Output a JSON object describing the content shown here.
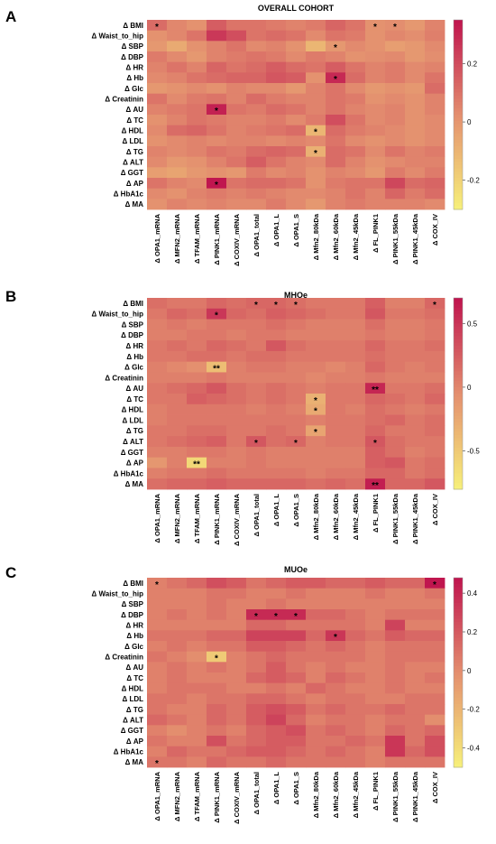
{
  "colorscale": {
    "low": "#f7f27a",
    "mid": "#e4906f",
    "high": "#c0164f"
  },
  "panels": [
    {
      "letter": "A",
      "title": "OVERALL COHORT",
      "colorbar_ticks": [
        0.2,
        0,
        -0.2
      ],
      "vmin": -0.3,
      "vmax": 0.35,
      "rows": [
        "Δ BMI",
        "Δ Waist_to_hip",
        "Δ SBP",
        "Δ DBP",
        "Δ HR",
        "Δ Hb",
        "Δ Glc",
        "Δ Creatinin",
        "Δ AU",
        "Δ TC",
        "Δ HDL",
        "Δ LDL",
        "Δ TG",
        "Δ ALT",
        "Δ GGT",
        "Δ AP",
        "Δ HbA1c",
        "Δ MA"
      ],
      "cols": [
        "Δ OPA1_mRNA",
        "Δ MFN2_mRNA",
        "Δ TFAM_mRNA",
        "Δ PINK1_mRNA",
        "Δ COXIV_mRNA",
        "Δ OPA1_total",
        "Δ OPA1_L",
        "Δ OPA1_S",
        "Δ Mfn2_80kDa",
        "Δ Mfn2_60kDa",
        "Δ Mfn2_45kDa",
        "Δ FL_PINK1",
        "Δ PINK1_55kDa",
        "Δ PINK1_45kDa",
        "Δ COX_IV"
      ],
      "values": [
        [
          0.12,
          0.05,
          0.02,
          0.16,
          0.1,
          0.1,
          0.08,
          0.06,
          0.08,
          0.14,
          0.1,
          0.02,
          0.03,
          0.0,
          0.06
        ],
        [
          0.02,
          0.05,
          0.1,
          0.26,
          0.2,
          0.1,
          0.12,
          0.1,
          0.04,
          0.1,
          0.08,
          0.02,
          0.05,
          0.03,
          0.07
        ],
        [
          0.0,
          -0.06,
          0.02,
          0.06,
          0.1,
          0.04,
          0.06,
          0.02,
          -0.1,
          0.0,
          0.04,
          0.02,
          -0.02,
          0.0,
          0.04
        ],
        [
          0.08,
          0.04,
          0.0,
          0.06,
          0.08,
          0.1,
          0.08,
          0.04,
          0.08,
          0.06,
          0.02,
          0.03,
          0.04,
          0.0,
          0.03
        ],
        [
          0.06,
          0.1,
          0.06,
          0.14,
          0.1,
          0.12,
          0.16,
          0.12,
          0.1,
          0.16,
          0.1,
          0.06,
          0.08,
          0.04,
          0.06
        ],
        [
          0.04,
          0.06,
          0.1,
          0.12,
          0.14,
          0.14,
          0.18,
          0.16,
          0.02,
          0.3,
          0.12,
          0.06,
          0.08,
          0.04,
          0.1
        ],
        [
          0.0,
          0.02,
          0.04,
          0.02,
          0.06,
          0.04,
          0.04,
          0.0,
          0.06,
          0.1,
          0.04,
          0.0,
          0.02,
          0.0,
          0.12
        ],
        [
          0.1,
          0.04,
          0.08,
          0.1,
          0.06,
          0.12,
          0.08,
          0.06,
          0.06,
          0.1,
          0.08,
          0.02,
          0.04,
          0.02,
          0.06
        ],
        [
          0.06,
          0.08,
          0.1,
          0.32,
          0.1,
          0.08,
          0.12,
          0.1,
          0.06,
          0.1,
          0.06,
          0.04,
          0.06,
          0.02,
          0.06
        ],
        [
          0.02,
          0.06,
          0.1,
          0.08,
          0.06,
          0.06,
          0.08,
          0.04,
          0.08,
          0.2,
          0.1,
          0.04,
          0.06,
          0.02,
          0.04
        ],
        [
          0.04,
          0.12,
          0.14,
          0.1,
          0.06,
          0.08,
          0.1,
          0.12,
          -0.1,
          0.12,
          0.08,
          0.06,
          0.04,
          0.02,
          0.04
        ],
        [
          0.02,
          0.04,
          0.06,
          0.04,
          0.06,
          0.06,
          0.04,
          0.06,
          0.04,
          0.1,
          0.04,
          0.02,
          0.04,
          0.02,
          0.04
        ],
        [
          0.06,
          0.04,
          0.06,
          0.1,
          0.08,
          0.12,
          0.14,
          0.12,
          -0.08,
          0.12,
          0.1,
          0.04,
          0.1,
          0.06,
          0.08
        ],
        [
          0.04,
          0.0,
          0.02,
          0.06,
          0.1,
          0.16,
          0.1,
          0.06,
          0.04,
          0.12,
          0.06,
          0.02,
          0.04,
          0.06,
          0.06
        ],
        [
          -0.02,
          -0.04,
          0.0,
          0.02,
          0.0,
          0.08,
          0.04,
          0.06,
          0.02,
          0.06,
          0.04,
          0.0,
          0.08,
          0.04,
          0.08
        ],
        [
          0.1,
          0.06,
          0.04,
          0.36,
          0.1,
          0.12,
          0.12,
          0.1,
          0.02,
          0.08,
          0.1,
          0.1,
          0.22,
          0.12,
          0.14
        ],
        [
          0.04,
          0.02,
          0.06,
          0.08,
          0.06,
          0.08,
          0.06,
          0.04,
          0.04,
          0.06,
          0.1,
          0.06,
          0.14,
          0.08,
          0.12
        ],
        [
          0.02,
          0.06,
          0.04,
          0.06,
          0.04,
          0.04,
          0.08,
          0.04,
          0.0,
          0.06,
          0.08,
          0.06,
          0.06,
          0.06,
          0.04
        ]
      ],
      "stars": [
        {
          "row": 0,
          "col": 0,
          "label": "*"
        },
        {
          "row": 0,
          "col": 11,
          "label": "*"
        },
        {
          "row": 0,
          "col": 12,
          "label": "*"
        },
        {
          "row": 2,
          "col": 9,
          "label": "*"
        },
        {
          "row": 5,
          "col": 9,
          "label": "*"
        },
        {
          "row": 8,
          "col": 3,
          "label": "*"
        },
        {
          "row": 10,
          "col": 8,
          "label": "*"
        },
        {
          "row": 12,
          "col": 8,
          "label": "*"
        },
        {
          "row": 15,
          "col": 3,
          "label": "*"
        }
      ]
    },
    {
      "letter": "B",
      "title": "MHOe",
      "colorbar_ticks": [
        0.5,
        0,
        -0.5
      ],
      "vmin": -0.8,
      "vmax": 0.7,
      "rows": [
        "Δ BMI",
        "Δ Waist_to_hip",
        "Δ SBP",
        "Δ DBP",
        "Δ HR",
        "Δ Hb",
        "Δ Glc",
        "Δ Creatinin",
        "Δ AU",
        "Δ TC",
        "Δ HDL",
        "Δ LDL",
        "Δ TG",
        "Δ ALT",
        "Δ GGT",
        "Δ AP",
        "Δ HbA1c",
        "Δ MA"
      ],
      "cols": [
        "Δ OPA1_mRNA",
        "Δ MFN2_mRNA",
        "Δ TFAM_mRNA",
        "Δ PINK1_mRNA",
        "Δ COXIV_mRNA",
        "Δ OPA1_total",
        "Δ OPA1_L",
        "Δ OPA1_S",
        "Δ Mfn2_80kDa",
        "Δ Mfn2_60kDa",
        "Δ Mfn2_45kDa",
        "Δ FL_PINK1",
        "Δ PINK1_55kDa",
        "Δ PINK1_45kDa",
        "Δ COX_IV"
      ],
      "values": [
        [
          0.15,
          0.1,
          0.1,
          0.2,
          0.15,
          0.2,
          0.2,
          0.15,
          0.1,
          0.1,
          0.1,
          0.25,
          0.05,
          0.05,
          0.2
        ],
        [
          0.1,
          0.2,
          0.15,
          0.5,
          0.2,
          0.15,
          0.25,
          0.2,
          0.15,
          0.1,
          0.1,
          0.3,
          0.1,
          0.1,
          0.15
        ],
        [
          0.05,
          0.1,
          0.05,
          0.1,
          0.1,
          0.1,
          0.15,
          0.1,
          0.05,
          0.05,
          0.05,
          0.15,
          0.05,
          0.05,
          0.1
        ],
        [
          0.05,
          0.05,
          0.1,
          0.1,
          0.05,
          0.1,
          0.1,
          0.05,
          0.05,
          0.05,
          0.05,
          0.1,
          0.05,
          0.05,
          0.1
        ],
        [
          0.1,
          0.15,
          0.1,
          0.2,
          0.15,
          0.1,
          0.3,
          0.15,
          0.1,
          0.1,
          0.1,
          0.2,
          0.1,
          0.1,
          0.15
        ],
        [
          0.1,
          0.1,
          0.15,
          0.15,
          0.1,
          0.15,
          0.15,
          0.1,
          0.1,
          0.1,
          0.1,
          0.15,
          0.1,
          0.1,
          0.1
        ],
        [
          0.05,
          0.0,
          -0.05,
          -0.4,
          0.05,
          0.1,
          0.1,
          0.05,
          0.05,
          0.0,
          0.05,
          0.2,
          0.1,
          0.05,
          0.1
        ],
        [
          0.05,
          0.05,
          0.05,
          0.1,
          0.05,
          0.05,
          0.05,
          0.05,
          0.0,
          0.05,
          0.05,
          0.1,
          0.05,
          0.05,
          0.05
        ],
        [
          0.1,
          0.15,
          0.2,
          0.3,
          0.15,
          0.1,
          0.15,
          0.1,
          0.05,
          0.1,
          0.1,
          0.6,
          0.1,
          0.1,
          0.15
        ],
        [
          0.1,
          0.1,
          0.25,
          0.2,
          0.15,
          0.1,
          0.15,
          0.1,
          -0.3,
          0.1,
          0.1,
          0.2,
          0.15,
          0.1,
          0.2
        ],
        [
          0.05,
          0.1,
          0.1,
          0.1,
          0.1,
          0.05,
          0.1,
          0.05,
          -0.25,
          0.1,
          0.05,
          0.15,
          0.1,
          0.05,
          0.1
        ],
        [
          0.05,
          0.1,
          0.1,
          0.1,
          0.1,
          0.1,
          0.1,
          0.1,
          0.05,
          0.1,
          0.1,
          0.15,
          0.2,
          0.1,
          0.15
        ],
        [
          0.1,
          0.1,
          0.15,
          0.15,
          0.1,
          0.1,
          0.15,
          0.1,
          -0.2,
          0.1,
          0.1,
          0.2,
          0.1,
          0.1,
          0.15
        ],
        [
          0.1,
          0.15,
          0.2,
          0.25,
          0.1,
          0.3,
          0.15,
          0.2,
          0.05,
          0.1,
          0.1,
          0.3,
          0.15,
          0.1,
          0.1
        ],
        [
          0.05,
          0.05,
          0.1,
          0.1,
          0.05,
          0.1,
          0.05,
          0.05,
          0.05,
          0.05,
          0.05,
          0.25,
          0.15,
          0.05,
          0.1
        ],
        [
          -0.1,
          0.05,
          -0.6,
          0.05,
          0.05,
          0.1,
          0.05,
          0.05,
          0.05,
          0.05,
          0.05,
          0.25,
          0.3,
          0.1,
          0.15
        ],
        [
          0.05,
          0.1,
          0.1,
          0.15,
          0.1,
          0.1,
          0.1,
          0.1,
          0.05,
          0.1,
          0.1,
          0.2,
          0.2,
          0.1,
          0.15
        ],
        [
          0.15,
          0.2,
          0.2,
          0.25,
          0.2,
          0.2,
          0.2,
          0.2,
          0.15,
          0.2,
          0.15,
          0.65,
          0.2,
          0.2,
          0.3
        ]
      ],
      "stars": [
        {
          "row": 0,
          "col": 5,
          "label": "*"
        },
        {
          "row": 0,
          "col": 6,
          "label": "*"
        },
        {
          "row": 0,
          "col": 7,
          "label": "*"
        },
        {
          "row": 0,
          "col": 14,
          "label": "*"
        },
        {
          "row": 1,
          "col": 3,
          "label": "*"
        },
        {
          "row": 6,
          "col": 3,
          "label": "**"
        },
        {
          "row": 8,
          "col": 11,
          "label": "**"
        },
        {
          "row": 9,
          "col": 8,
          "label": "*"
        },
        {
          "row": 10,
          "col": 8,
          "label": "*"
        },
        {
          "row": 12,
          "col": 8,
          "label": "*"
        },
        {
          "row": 13,
          "col": 5,
          "label": "*"
        },
        {
          "row": 13,
          "col": 7,
          "label": "*"
        },
        {
          "row": 13,
          "col": 11,
          "label": "*"
        },
        {
          "row": 15,
          "col": 2,
          "label": "**"
        },
        {
          "row": 17,
          "col": 11,
          "label": "**"
        }
      ]
    },
    {
      "letter": "C",
      "title": "MUOe",
      "colorbar_ticks": [
        0.4,
        0.2,
        0,
        -0.2,
        -0.4
      ],
      "vmin": -0.5,
      "vmax": 0.48,
      "rows": [
        "Δ BMI",
        "Δ Waist_to_hip",
        "Δ SBP",
        "Δ DBP",
        "Δ HR",
        "Δ Hb",
        "Δ Glc",
        "Δ Creatinin",
        "Δ AU",
        "Δ TC",
        "Δ HDL",
        "Δ LDL",
        "Δ TG",
        "Δ ALT",
        "Δ GGT",
        "Δ AP",
        "Δ HbA1c",
        "Δ MA"
      ],
      "cols": [
        "Δ OPA1_mRNA",
        "Δ MFN2_mRNA",
        "Δ TFAM_mRNA",
        "Δ PINK1_mRNA",
        "Δ COXIV_mRNA",
        "Δ OPA1_total",
        "Δ OPA1_L",
        "Δ OPA1_S",
        "Δ Mfn2_80kDa",
        "Δ Mfn2_60kDa",
        "Δ Mfn2_45kDa",
        "Δ FL_PINK1",
        "Δ PINK1_55kDa",
        "Δ PINK1_45kDa",
        "Δ COX_IV"
      ],
      "values": [
        [
          0.05,
          0.1,
          0.15,
          0.25,
          0.2,
          0.1,
          0.15,
          0.2,
          0.2,
          0.15,
          0.15,
          0.2,
          0.15,
          0.15,
          0.48
        ],
        [
          0.05,
          0.05,
          0.05,
          0.1,
          0.1,
          0.05,
          0.05,
          0.1,
          0.05,
          0.05,
          0.05,
          0.1,
          0.05,
          0.05,
          0.1
        ],
        [
          0.05,
          0.05,
          0.05,
          0.1,
          0.05,
          0.05,
          0.1,
          0.05,
          0.05,
          0.05,
          0.05,
          0.05,
          0.05,
          0.05,
          0.05
        ],
        [
          0.05,
          0.1,
          0.05,
          0.1,
          0.05,
          0.4,
          0.4,
          0.4,
          0.15,
          0.15,
          0.1,
          0.05,
          0.1,
          0.1,
          0.1
        ],
        [
          0.05,
          0.05,
          0.05,
          0.05,
          0.05,
          0.15,
          0.15,
          0.1,
          0.1,
          0.1,
          0.1,
          0.05,
          0.3,
          0.05,
          0.05
        ],
        [
          0.1,
          0.1,
          0.1,
          0.15,
          0.15,
          0.3,
          0.3,
          0.3,
          0.15,
          0.35,
          0.15,
          0.1,
          0.2,
          0.15,
          0.15
        ],
        [
          0.05,
          0.1,
          0.05,
          0.1,
          0.1,
          0.2,
          0.2,
          0.15,
          0.1,
          0.15,
          0.1,
          0.05,
          0.1,
          0.1,
          0.1
        ],
        [
          0.1,
          0.05,
          0.0,
          -0.3,
          0.05,
          0.1,
          0.15,
          0.1,
          0.1,
          0.1,
          0.1,
          0.05,
          0.1,
          0.1,
          0.1
        ],
        [
          0.05,
          0.1,
          0.05,
          0.1,
          0.05,
          0.1,
          0.2,
          0.1,
          0.05,
          0.1,
          0.05,
          0.05,
          0.1,
          0.05,
          0.05
        ],
        [
          0.05,
          0.1,
          0.05,
          0.05,
          0.05,
          0.15,
          0.2,
          0.15,
          0.05,
          0.15,
          0.1,
          0.05,
          0.1,
          0.05,
          0.1
        ],
        [
          0.05,
          0.1,
          0.1,
          0.1,
          0.05,
          0.05,
          0.1,
          0.05,
          0.15,
          0.1,
          0.05,
          0.05,
          0.1,
          0.05,
          0.05
        ],
        [
          0.1,
          0.1,
          0.05,
          0.1,
          0.1,
          0.15,
          0.15,
          0.1,
          0.05,
          0.1,
          0.1,
          0.05,
          0.05,
          0.1,
          0.1
        ],
        [
          0.1,
          0.05,
          0.05,
          0.15,
          0.1,
          0.2,
          0.25,
          0.2,
          0.1,
          0.15,
          0.1,
          0.1,
          0.15,
          0.1,
          0.1
        ],
        [
          0.15,
          0.1,
          0.05,
          0.15,
          0.1,
          0.2,
          0.3,
          0.15,
          0.05,
          0.1,
          0.1,
          0.05,
          0.1,
          0.1,
          0.0
        ],
        [
          0.05,
          0.0,
          0.05,
          0.1,
          0.05,
          0.15,
          0.2,
          0.25,
          0.1,
          0.15,
          0.1,
          0.05,
          0.15,
          0.1,
          0.15
        ],
        [
          0.1,
          0.05,
          0.05,
          0.25,
          0.1,
          0.15,
          0.2,
          0.2,
          0.1,
          0.1,
          0.15,
          0.1,
          0.35,
          0.1,
          0.25
        ],
        [
          0.05,
          0.15,
          0.1,
          0.1,
          0.15,
          0.2,
          0.2,
          0.15,
          0.1,
          0.15,
          0.1,
          0.05,
          0.35,
          0.15,
          0.25
        ],
        [
          0.1,
          0.1,
          0.05,
          0.15,
          0.1,
          0.1,
          0.15,
          0.1,
          0.1,
          0.1,
          0.1,
          0.05,
          0.1,
          0.1,
          0.1
        ]
      ],
      "stars": [
        {
          "row": 0,
          "col": 0,
          "label": "*"
        },
        {
          "row": 0,
          "col": 14,
          "label": "*"
        },
        {
          "row": 3,
          "col": 5,
          "label": "*"
        },
        {
          "row": 3,
          "col": 6,
          "label": "*"
        },
        {
          "row": 3,
          "col": 7,
          "label": "*"
        },
        {
          "row": 5,
          "col": 9,
          "label": "*"
        },
        {
          "row": 7,
          "col": 3,
          "label": "*"
        },
        {
          "row": 17,
          "col": 0,
          "label": "*"
        }
      ]
    }
  ]
}
